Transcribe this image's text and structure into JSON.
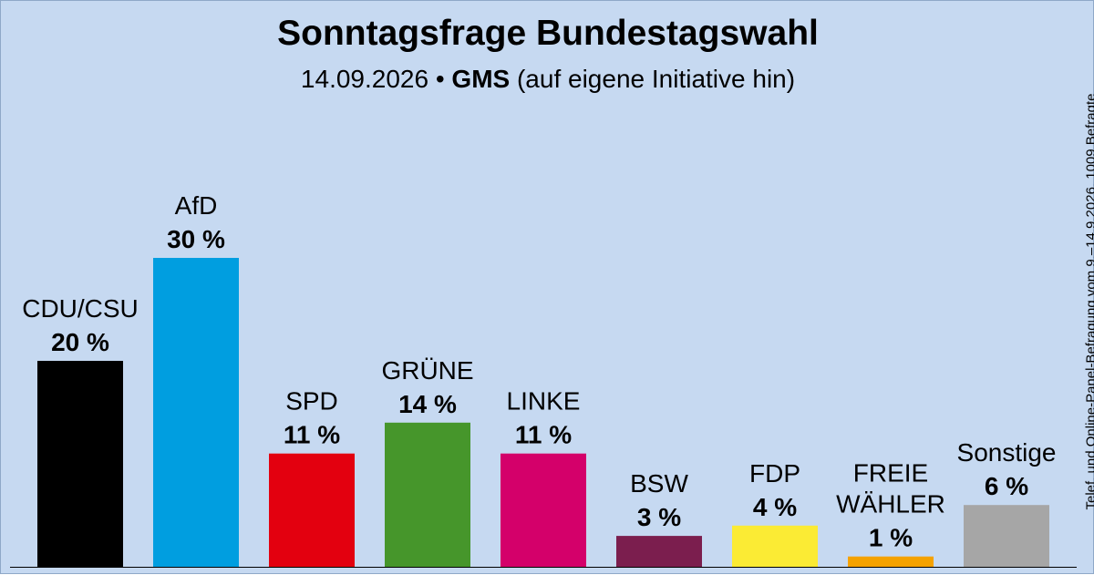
{
  "title": "Sonntagsfrage Bundestagswahl",
  "subtitle": {
    "date": "14.09.2026 •",
    "institute": "GMS",
    "note": "(auf eigene Initiative hin)"
  },
  "side_note": "Telef. und Online-Panel-Befragung vom 9.–14.9.2026, 1009 Befragte",
  "chart_data": {
    "type": "bar",
    "categories": [
      "CDU/CSU",
      "AfD",
      "SPD",
      "GRÜNE",
      "LINKE",
      "BSW",
      "FDP",
      "FREIE WÄHLER",
      "Sonstige"
    ],
    "label_lines": [
      [
        "CDU/CSU"
      ],
      [
        "AfD"
      ],
      [
        "SPD"
      ],
      [
        "GRÜNE"
      ],
      [
        "LINKE"
      ],
      [
        "BSW"
      ],
      [
        "FDP"
      ],
      [
        "FREIE",
        "WÄHLER"
      ],
      [
        "Sonstige"
      ]
    ],
    "values": [
      20,
      30,
      11,
      14,
      11,
      3,
      4,
      1,
      6
    ],
    "value_labels": [
      "20 %",
      "30 %",
      "11 %",
      "14 %",
      "11 %",
      "3 %",
      "4 %",
      "1 %",
      "6 %"
    ],
    "colors": [
      "#000000",
      "#009ee0",
      "#e3000f",
      "#46962b",
      "#d4006a",
      "#7b1e4e",
      "#fbeb34",
      "#f5a200",
      "#a6a6a6"
    ],
    "unit": "%",
    "ylim": [
      0,
      30
    ]
  }
}
